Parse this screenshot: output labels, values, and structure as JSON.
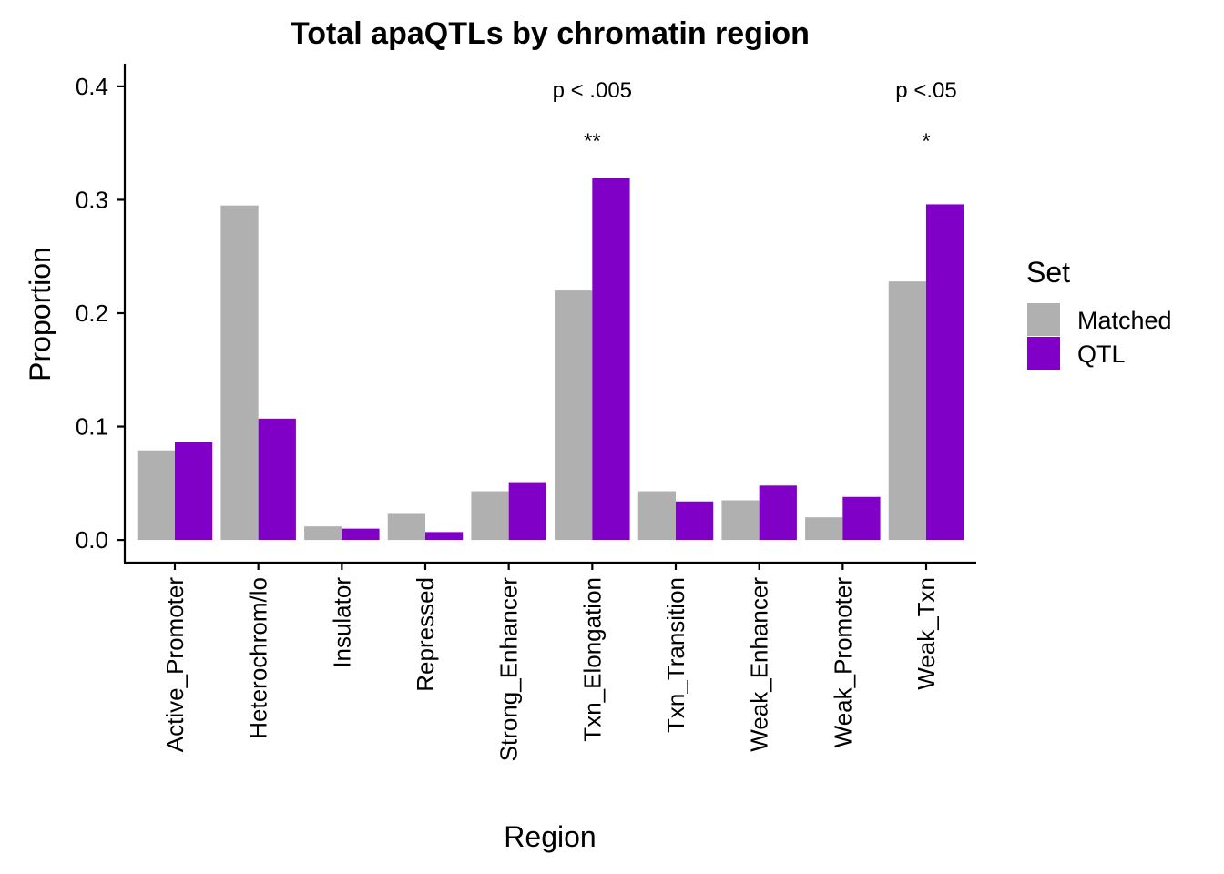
{
  "chart_data": {
    "type": "bar",
    "title": "Total apaQTLs by chromatin region",
    "xlabel": "Region",
    "ylabel": "Proportion",
    "ylim": [
      -0.02,
      0.42
    ],
    "yticks": [
      "0.0",
      "0.1",
      "0.2",
      "0.3",
      "0.4"
    ],
    "ytick_values": [
      0,
      0.1,
      0.2,
      0.3,
      0.4
    ],
    "categories": [
      "Active_Promoter",
      "Heterochrom/lo",
      "Insulator",
      "Repressed",
      "Strong_Enhancer",
      "Txn_Elongation",
      "Txn_Transition",
      "Weak_Enhancer",
      "Weak_Promoter",
      "Weak_Txn"
    ],
    "series": [
      {
        "name": "Matched",
        "color": "#b0b0b0",
        "values": [
          0.079,
          0.295,
          0.012,
          0.023,
          0.043,
          0.22,
          0.043,
          0.035,
          0.02,
          0.228
        ]
      },
      {
        "name": "QTL",
        "color": "#8000c8",
        "values": [
          0.086,
          0.107,
          0.01,
          0.007,
          0.051,
          0.319,
          0.034,
          0.048,
          0.038,
          0.296
        ]
      }
    ],
    "legend": {
      "title": "Set",
      "placement": "right"
    },
    "grid": false,
    "annotations": [
      {
        "category": "Txn_Elongation",
        "pvalue": "p < .005",
        "stars": "**"
      },
      {
        "category": "Weak_Txn",
        "pvalue": "p <.05",
        "stars": "*"
      }
    ]
  }
}
